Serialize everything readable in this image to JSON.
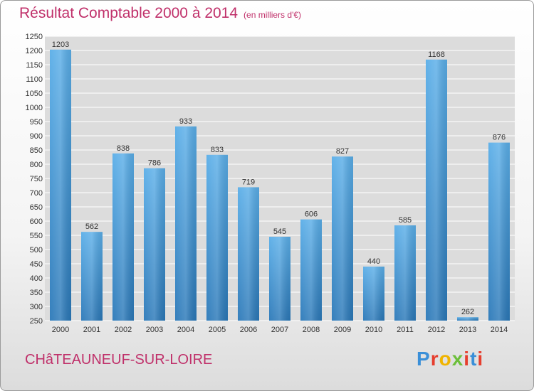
{
  "header": {
    "title": "Résultat Comptable 2000 à 2014",
    "unit": "(en milliers d'€)"
  },
  "commune": "CHâTEAUNEUF-SUR-LOIRE",
  "logo": {
    "letters": [
      "P",
      "r",
      "o",
      "x",
      "i",
      "t",
      "i"
    ]
  },
  "colors": {
    "accent": "#c0306a",
    "bar_top": "#5aaee8",
    "bar_bottom": "#2a78b8",
    "grid": "#ffffff",
    "plot_bg": "#dcdcdc"
  },
  "chart_data": {
    "type": "bar",
    "title": "Résultat Comptable 2000 à 2014",
    "categories": [
      "2000",
      "2001",
      "2002",
      "2003",
      "2004",
      "2005",
      "2006",
      "2007",
      "2008",
      "2009",
      "2010",
      "2011",
      "2012",
      "2013",
      "2014"
    ],
    "values": [
      1203,
      562,
      838,
      786,
      933,
      833,
      719,
      545,
      606,
      827,
      440,
      585,
      1168,
      262,
      876
    ],
    "ylim": [
      250,
      1250
    ],
    "yticks": [
      250,
      300,
      350,
      400,
      450,
      500,
      550,
      600,
      650,
      700,
      750,
      800,
      850,
      900,
      950,
      1000,
      1050,
      1100,
      1150,
      1200,
      1250
    ],
    "grid": true,
    "xlabel": "",
    "ylabel": ""
  }
}
